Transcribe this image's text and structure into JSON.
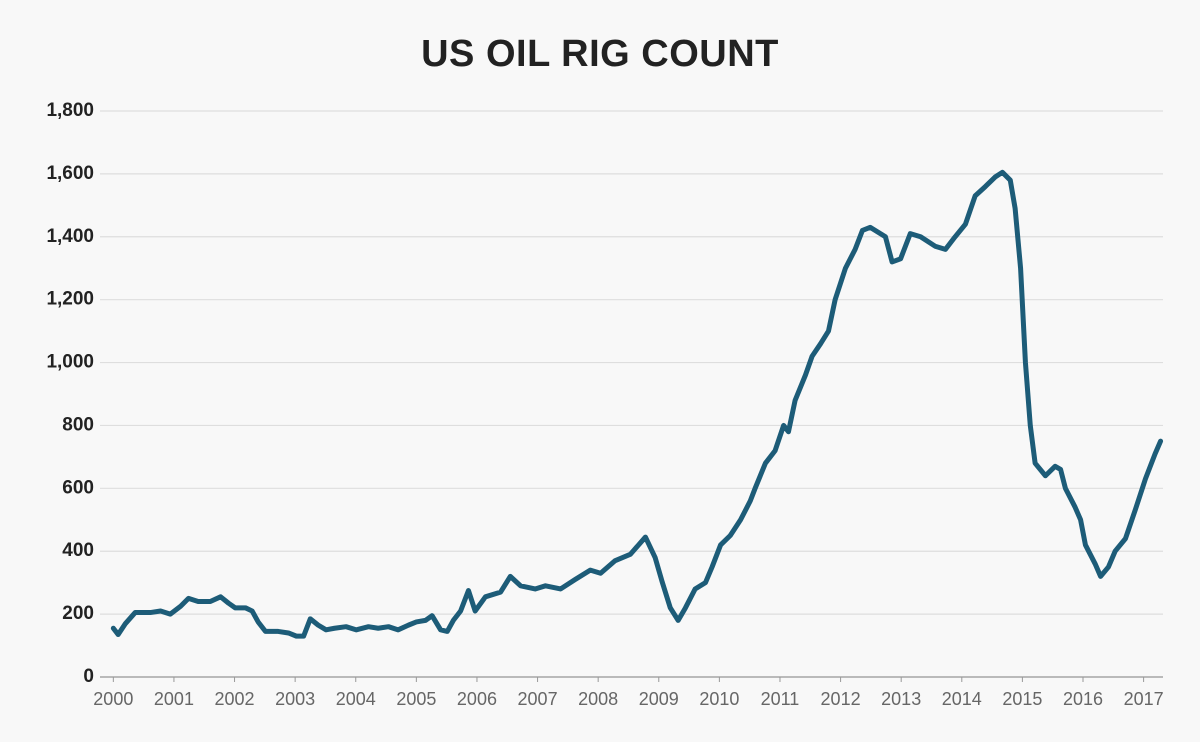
{
  "chart_data": {
    "type": "line",
    "title": "US OIL RIG COUNT",
    "xlim": [
      1999.78,
      2017.32
    ],
    "xticks": [
      2000,
      2001,
      2002,
      2003,
      2004,
      2005,
      2006,
      2007,
      2008,
      2009,
      2010,
      2011,
      2012,
      2013,
      2014,
      2015,
      2016,
      2017
    ],
    "ylim": [
      0,
      1800
    ],
    "yticks": [
      0,
      {
        "value": 200,
        "label": "200"
      },
      {
        "value": 400,
        "label": "400"
      },
      {
        "value": 600,
        "label": "600"
      },
      {
        "value": 800,
        "label": "800"
      },
      {
        "value": 1000,
        "label": "1,000"
      },
      {
        "value": 1200,
        "label": "1,200"
      },
      {
        "value": 1400,
        "label": "1,400"
      },
      {
        "value": 1600,
        "label": "1,600"
      },
      {
        "value": 1800,
        "label": "1,800"
      }
    ],
    "grid": true,
    "series": [
      {
        "color": "#1d5c78",
        "x": [
          2000.0,
          2000.08,
          2000.2,
          2000.36,
          2000.61,
          2000.78,
          2000.94,
          2001.11,
          2001.24,
          2001.4,
          2001.6,
          2001.77,
          2001.9,
          2002.01,
          2002.18,
          2002.29,
          2002.39,
          2002.51,
          2002.72,
          2002.89,
          2003.02,
          2003.14,
          2003.25,
          2003.38,
          2003.51,
          2003.65,
          2003.84,
          2004.01,
          2004.21,
          2004.37,
          2004.54,
          2004.7,
          2004.87,
          2005.0,
          2005.15,
          2005.26,
          2005.4,
          2005.51,
          2005.61,
          2005.73,
          2005.86,
          2005.97,
          2006.14,
          2006.39,
          2006.55,
          2006.72,
          2006.96,
          2007.13,
          2007.38,
          2007.62,
          2007.87,
          2008.04,
          2008.28,
          2008.53,
          2008.78,
          2008.94,
          2009.06,
          2009.19,
          2009.32,
          2009.44,
          2009.6,
          2009.77,
          2009.88,
          2010.02,
          2010.18,
          2010.35,
          2010.51,
          2010.59,
          2010.76,
          2010.92,
          2011.06,
          2011.14,
          2011.25,
          2011.42,
          2011.53,
          2011.67,
          2011.8,
          2011.91,
          2012.08,
          2012.24,
          2012.36,
          2012.49,
          2012.74,
          2012.85,
          2012.99,
          2013.15,
          2013.32,
          2013.56,
          2013.73,
          2013.89,
          2014.06,
          2014.22,
          2014.39,
          2014.55,
          2014.67,
          2014.8,
          2014.88,
          2014.97,
          2015.05,
          2015.13,
          2015.21,
          2015.38,
          2015.54,
          2015.63,
          2015.71,
          2015.87,
          2015.96,
          2016.04,
          2016.2,
          2016.29,
          2016.42,
          2016.53,
          2016.7,
          2016.86,
          2017.03,
          2017.19,
          2017.28
        ],
        "values": [
          155,
          135,
          170,
          205,
          205,
          210,
          200,
          225,
          250,
          240,
          240,
          255,
          235,
          220,
          220,
          210,
          175,
          145,
          145,
          140,
          130,
          130,
          185,
          165,
          150,
          155,
          160,
          150,
          160,
          155,
          160,
          150,
          165,
          175,
          180,
          195,
          150,
          145,
          180,
          210,
          275,
          210,
          255,
          270,
          320,
          290,
          280,
          290,
          280,
          310,
          340,
          330,
          370,
          390,
          445,
          380,
          300,
          220,
          180,
          220,
          280,
          300,
          350,
          420,
          450,
          500,
          560,
          600,
          680,
          720,
          800,
          780,
          880,
          960,
          1020,
          1060,
          1100,
          1200,
          1300,
          1360,
          1420,
          1430,
          1400,
          1320,
          1330,
          1410,
          1400,
          1370,
          1360,
          1400,
          1440,
          1530,
          1560,
          1590,
          1605,
          1580,
          1490,
          1300,
          1000,
          800,
          680,
          640,
          670,
          660,
          600,
          540,
          500,
          420,
          360,
          320,
          350,
          400,
          440,
          530,
          630,
          710,
          750
        ]
      }
    ]
  }
}
